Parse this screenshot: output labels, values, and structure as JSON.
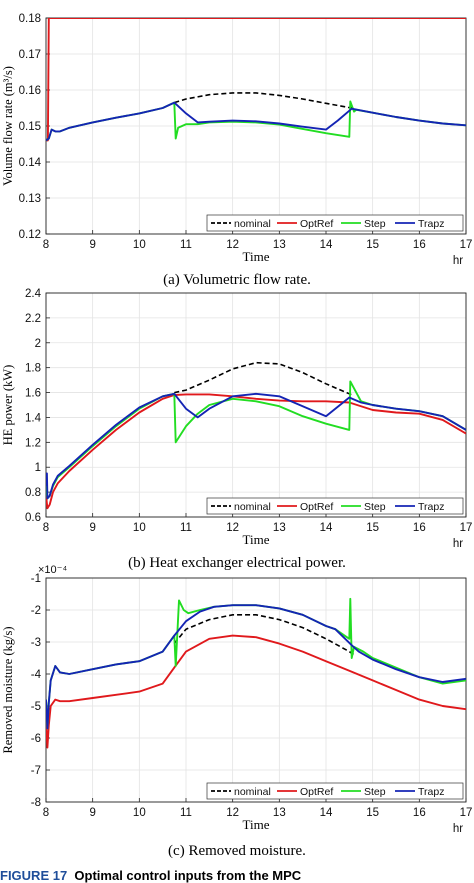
{
  "colors": {
    "nominal": "#000000",
    "OptRef": "#e0191c",
    "Step": "#22dd22",
    "Trapz": "#1424b4"
  },
  "captions": [
    "(a) Volumetric flow rate.",
    "(b) Heat exchanger electrical power.",
    "(c) Removed moisture."
  ],
  "figure_caption": {
    "label": "FIGURE 17",
    "text": "Optimal control inputs from the MPC"
  },
  "chart_data": [
    {
      "type": "line",
      "ylabel": "Volume flow rate (m³/s)",
      "xlabel": "Time",
      "x_unit": "hr",
      "xlim": [
        8,
        17
      ],
      "ylim": [
        0.12,
        0.18
      ],
      "xticks": [
        "8",
        "9",
        "10",
        "11",
        "12",
        "13",
        "14",
        "15",
        "16",
        "17"
      ],
      "yticks": [
        "0.12",
        "0.13",
        "0.14",
        "0.15",
        "0.16",
        "0.17",
        "0.18"
      ],
      "grid": true,
      "legend": "bottom-right, horizontal",
      "series": [
        {
          "name": "nominal",
          "style": "dashed",
          "x": [
            10.75,
            11.0,
            11.5,
            12.0,
            12.5,
            13.0,
            13.5,
            14.0,
            14.5,
            14.6
          ],
          "y": [
            0.1565,
            0.1575,
            0.1587,
            0.1592,
            0.1592,
            0.1585,
            0.1575,
            0.1563,
            0.1551,
            0.155
          ]
        },
        {
          "name": "OptRef",
          "style": "solid",
          "x": [
            8.0,
            8.04,
            8.06,
            17.0
          ],
          "y": [
            0.146,
            0.146,
            0.18,
            0.18
          ]
        },
        {
          "name": "Step",
          "style": "solid",
          "x": [
            8.0,
            8.06,
            8.12,
            8.2,
            8.3,
            8.5,
            9.0,
            9.5,
            10.0,
            10.5,
            10.75,
            10.78,
            10.83,
            11.0,
            11.25,
            11.5,
            12.0,
            12.5,
            13.0,
            13.5,
            14.0,
            14.5,
            14.52,
            14.6,
            14.65,
            15.0,
            15.5,
            16.0,
            16.5,
            17.0
          ],
          "y": [
            0.146,
            0.1465,
            0.149,
            0.1485,
            0.1485,
            0.1495,
            0.151,
            0.1523,
            0.1535,
            0.155,
            0.1565,
            0.1465,
            0.1495,
            0.1505,
            0.1505,
            0.151,
            0.1512,
            0.151,
            0.1504,
            0.1492,
            0.148,
            0.147,
            0.1568,
            0.154,
            0.1545,
            0.1537,
            0.1525,
            0.1515,
            0.1507,
            0.1502
          ]
        },
        {
          "name": "Trapz",
          "style": "solid",
          "x": [
            8.0,
            8.06,
            8.12,
            8.2,
            8.3,
            8.5,
            9.0,
            9.5,
            10.0,
            10.5,
            10.75,
            11.0,
            11.25,
            11.5,
            12.0,
            12.5,
            13.0,
            13.5,
            14.0,
            14.25,
            14.55,
            15.0,
            15.5,
            16.0,
            16.5,
            17.0
          ],
          "y": [
            0.146,
            0.1465,
            0.149,
            0.1485,
            0.1485,
            0.1495,
            0.151,
            0.1523,
            0.1535,
            0.155,
            0.1565,
            0.1535,
            0.151,
            0.1512,
            0.1515,
            0.1513,
            0.1507,
            0.1498,
            0.149,
            0.1515,
            0.1548,
            0.1537,
            0.1525,
            0.1515,
            0.1507,
            0.1502
          ]
        }
      ]
    },
    {
      "type": "line",
      "ylabel": "HE power (kW)",
      "xlabel": "Time",
      "x_unit": "hr",
      "xlim": [
        8,
        17
      ],
      "ylim": [
        0.6,
        2.4
      ],
      "xticks": [
        "8",
        "9",
        "10",
        "11",
        "12",
        "13",
        "14",
        "15",
        "16",
        "17"
      ],
      "yticks": [
        "0.6",
        "0.8",
        "1",
        "1.2",
        "1.4",
        "1.6",
        "1.8",
        "2",
        "2.2",
        "2.4"
      ],
      "grid": true,
      "legend": "bottom-right, horizontal",
      "series": [
        {
          "name": "nominal",
          "style": "dashed",
          "x": [
            10.75,
            11.0,
            11.5,
            12.0,
            12.5,
            13.0,
            13.5,
            14.0,
            14.5,
            14.6
          ],
          "y": [
            1.6,
            1.62,
            1.7,
            1.79,
            1.84,
            1.83,
            1.76,
            1.67,
            1.59,
            1.575
          ]
        },
        {
          "name": "OptRef",
          "style": "solid",
          "x": [
            8.0,
            8.03,
            8.08,
            8.15,
            8.25,
            8.5,
            9.0,
            9.5,
            10.0,
            10.5,
            10.75,
            11.0,
            11.5,
            12.0,
            12.5,
            13.0,
            13.5,
            14.0,
            14.5,
            15.0,
            15.5,
            16.0,
            16.5,
            17.0
          ],
          "y": [
            0.78,
            0.67,
            0.7,
            0.8,
            0.87,
            0.97,
            1.14,
            1.3,
            1.44,
            1.55,
            1.58,
            1.585,
            1.585,
            1.57,
            1.55,
            1.535,
            1.53,
            1.53,
            1.52,
            1.46,
            1.44,
            1.43,
            1.38,
            1.27
          ]
        },
        {
          "name": "Step",
          "style": "solid",
          "x": [
            8.0,
            8.03,
            8.08,
            8.15,
            8.25,
            8.5,
            9.0,
            9.5,
            10.0,
            10.5,
            10.75,
            10.78,
            11.0,
            11.25,
            11.5,
            12.0,
            12.5,
            13.0,
            13.5,
            14.0,
            14.5,
            14.52,
            14.75,
            15.0,
            15.5,
            16.0,
            16.5,
            17.0
          ],
          "y": [
            0.85,
            0.75,
            0.77,
            0.85,
            0.92,
            1.0,
            1.17,
            1.33,
            1.47,
            1.57,
            1.59,
            1.2,
            1.33,
            1.43,
            1.5,
            1.55,
            1.53,
            1.49,
            1.41,
            1.35,
            1.3,
            1.69,
            1.53,
            1.5,
            1.47,
            1.45,
            1.41,
            1.3
          ]
        },
        {
          "name": "Trapz",
          "style": "solid",
          "x": [
            8.0,
            8.02,
            8.03,
            8.08,
            8.15,
            8.25,
            8.5,
            9.0,
            9.5,
            10.0,
            10.5,
            10.75,
            11.0,
            11.25,
            11.5,
            12.0,
            12.5,
            13.0,
            13.5,
            14.0,
            14.5,
            14.75,
            15.0,
            15.5,
            16.0,
            16.5,
            17.0
          ],
          "y": [
            0.85,
            0.95,
            0.75,
            0.77,
            0.86,
            0.93,
            1.01,
            1.18,
            1.34,
            1.48,
            1.57,
            1.59,
            1.47,
            1.4,
            1.47,
            1.57,
            1.59,
            1.57,
            1.49,
            1.41,
            1.56,
            1.52,
            1.5,
            1.47,
            1.45,
            1.41,
            1.3
          ]
        }
      ]
    },
    {
      "type": "line",
      "ylabel": "Removed moisture (kg/s)",
      "xlabel": "Time",
      "x_unit": "hr",
      "y_multiplier": "×10⁻⁴",
      "xlim": [
        8,
        17
      ],
      "ylim": [
        -8,
        -1
      ],
      "xticks": [
        "8",
        "9",
        "10",
        "11",
        "12",
        "13",
        "14",
        "15",
        "16",
        "17"
      ],
      "yticks": [
        "-8",
        "-7",
        "-6",
        "-5",
        "-4",
        "-3",
        "-2",
        "-1"
      ],
      "grid": true,
      "legend": "bottom-right, horizontal",
      "series": [
        {
          "name": "nominal",
          "style": "dashed",
          "x": [
            10.75,
            11.0,
            11.5,
            12.0,
            12.5,
            13.0,
            13.5,
            14.0,
            14.5,
            14.6
          ],
          "y": [
            -3.05,
            -2.6,
            -2.3,
            -2.15,
            -2.15,
            -2.3,
            -2.55,
            -2.9,
            -3.3,
            -3.4
          ]
        },
        {
          "name": "OptRef",
          "style": "solid",
          "x": [
            8.0,
            8.03,
            8.06,
            8.1,
            8.2,
            8.3,
            8.5,
            9.0,
            9.5,
            10.0,
            10.5,
            10.75,
            11.0,
            11.5,
            12.0,
            12.5,
            13.0,
            13.5,
            14.0,
            14.5,
            15.0,
            15.5,
            16.0,
            16.5,
            17.0
          ],
          "y": [
            -5.5,
            -6.3,
            -5.6,
            -5.0,
            -4.8,
            -4.85,
            -4.85,
            -4.75,
            -4.65,
            -4.55,
            -4.3,
            -3.8,
            -3.3,
            -2.9,
            -2.8,
            -2.85,
            -3.05,
            -3.3,
            -3.6,
            -3.9,
            -4.2,
            -4.5,
            -4.8,
            -5.0,
            -5.1
          ]
        },
        {
          "name": "Step",
          "style": "solid",
          "x": [
            8.0,
            8.03,
            8.06,
            8.1,
            8.2,
            8.3,
            8.5,
            9.0,
            9.5,
            10.0,
            10.5,
            10.75,
            10.78,
            10.85,
            10.95,
            11.05,
            11.3,
            11.6,
            12.0,
            12.5,
            13.0,
            13.5,
            14.0,
            14.2,
            14.5,
            14.52,
            14.55,
            14.6,
            14.8,
            15.0,
            15.5,
            16.0,
            16.5,
            17.0
          ],
          "y": [
            -4.8,
            -5.7,
            -4.9,
            -4.2,
            -3.75,
            -3.95,
            -4.0,
            -3.85,
            -3.7,
            -3.6,
            -3.3,
            -2.8,
            -3.75,
            -1.7,
            -2.0,
            -2.1,
            -2.0,
            -1.9,
            -1.85,
            -1.85,
            -1.95,
            -2.15,
            -2.5,
            -2.6,
            -2.9,
            -1.65,
            -3.5,
            -3.15,
            -3.3,
            -3.5,
            -3.8,
            -4.1,
            -4.3,
            -4.2
          ]
        },
        {
          "name": "Trapz",
          "style": "solid",
          "x": [
            8.0,
            8.03,
            8.06,
            8.1,
            8.2,
            8.3,
            8.5,
            9.0,
            9.5,
            10.0,
            10.5,
            10.75,
            11.0,
            11.3,
            11.6,
            12.0,
            12.5,
            13.0,
            13.5,
            14.0,
            14.2,
            14.55,
            14.7,
            15.0,
            15.5,
            16.0,
            16.5,
            17.0
          ],
          "y": [
            -4.8,
            -5.7,
            -4.9,
            -4.2,
            -3.75,
            -3.95,
            -4.0,
            -3.85,
            -3.7,
            -3.6,
            -3.3,
            -2.8,
            -2.35,
            -2.05,
            -1.9,
            -1.85,
            -1.85,
            -1.95,
            -2.15,
            -2.5,
            -2.6,
            -3.1,
            -3.3,
            -3.55,
            -3.85,
            -4.1,
            -4.25,
            -4.15
          ]
        }
      ]
    }
  ]
}
